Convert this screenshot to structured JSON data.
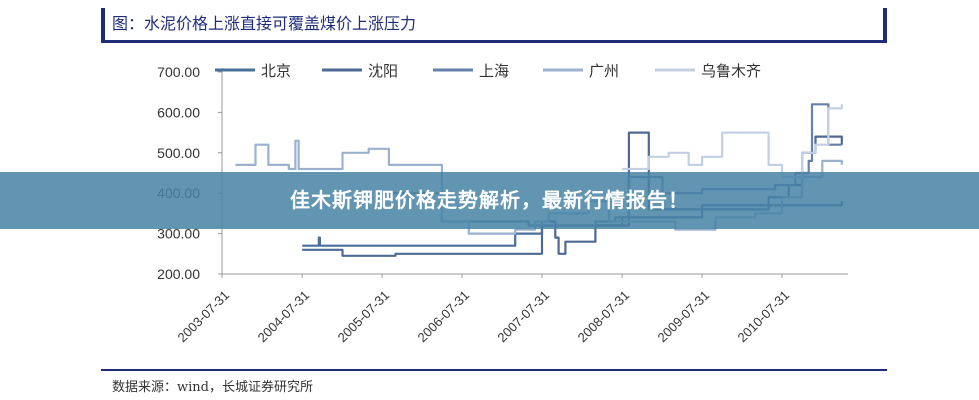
{
  "figure": {
    "title": "图：水泥价格上涨直接可覆盖煤价上涨压力",
    "source": "数据来源：wind，长城证券研究所"
  },
  "banner": {
    "text": "佳木斯钾肥价格走势解析，最新行情报告！"
  },
  "colors": {
    "title_bar": "#1f2d78",
    "banner_bg": "#4682a5"
  },
  "chart_data": {
    "type": "line",
    "title": "",
    "xlabel": "",
    "ylabel": "",
    "ylim": [
      200,
      700
    ],
    "y_ticks": [
      "700.00",
      "600.00",
      "500.00",
      "400.00",
      "300.00",
      "200.00"
    ],
    "x_ticks": [
      "2003-07-31",
      "2004-07-31",
      "2005-07-31",
      "2006-07-31",
      "2007-07-31",
      "2008-07-31",
      "2009-07-31",
      "2010-07-31"
    ],
    "legend_position": "top",
    "series": [
      {
        "name": "北京",
        "color": "#4a6f99",
        "points": [
          [
            "2004-07-31",
            270
          ],
          [
            "2004-09-30",
            270
          ],
          [
            "2004-10-15",
            290
          ],
          [
            "2004-10-20",
            270
          ],
          [
            "2005-06-30",
            270
          ],
          [
            "2006-07-31",
            270
          ],
          [
            "2007-03-31",
            300
          ],
          [
            "2007-07-31",
            320
          ],
          [
            "2008-06-30",
            320
          ],
          [
            "2008-07-31",
            340
          ],
          [
            "2009-07-31",
            370
          ],
          [
            "2010-07-31",
            370
          ],
          [
            "2010-12-31",
            370
          ],
          [
            "2011-04-30",
            380
          ]
        ]
      },
      {
        "name": "沈阳",
        "color": "#4e6a94",
        "points": [
          [
            "2004-07-31",
            260
          ],
          [
            "2004-09-30",
            260
          ],
          [
            "2005-01-31",
            245
          ],
          [
            "2005-06-30",
            245
          ],
          [
            "2005-09-30",
            250
          ],
          [
            "2007-02-28",
            250
          ],
          [
            "2007-07-31",
            330
          ],
          [
            "2007-09-30",
            290
          ],
          [
            "2007-10-15",
            250
          ],
          [
            "2007-11-15",
            280
          ],
          [
            "2008-03-31",
            320
          ],
          [
            "2008-07-31",
            320
          ],
          [
            "2008-08-31",
            550
          ],
          [
            "2008-10-31",
            550
          ],
          [
            "2008-11-30",
            360
          ],
          [
            "2010-05-31",
            390
          ],
          [
            "2010-08-31",
            420
          ],
          [
            "2010-10-31",
            500
          ],
          [
            "2010-12-31",
            540
          ],
          [
            "2011-04-30",
            520
          ]
        ]
      },
      {
        "name": "上海",
        "color": "#6682ac",
        "points": [
          [
            "2005-06-30",
            400
          ],
          [
            "2006-04-30",
            330
          ],
          [
            "2007-05-31",
            320
          ],
          [
            "2007-07-31",
            320
          ],
          [
            "2008-03-31",
            330
          ],
          [
            "2008-06-30",
            340
          ],
          [
            "2008-08-31",
            440
          ],
          [
            "2009-01-31",
            400
          ],
          [
            "2009-07-31",
            410
          ],
          [
            "2010-06-30",
            420
          ],
          [
            "2010-09-30",
            450
          ],
          [
            "2010-11-30",
            480
          ],
          [
            "2010-12-15",
            620
          ],
          [
            "2011-01-31",
            620
          ],
          [
            "2011-02-28",
            520
          ],
          [
            "2011-04-30",
            520
          ]
        ]
      },
      {
        "name": "广州",
        "color": "#9ab2d0",
        "points": [
          [
            "2003-09-30",
            470
          ],
          [
            "2003-12-31",
            520
          ],
          [
            "2004-02-28",
            470
          ],
          [
            "2004-05-31",
            460
          ],
          [
            "2004-06-30",
            530
          ],
          [
            "2004-07-15",
            460
          ],
          [
            "2005-01-31",
            500
          ],
          [
            "2005-05-31",
            510
          ],
          [
            "2005-08-31",
            470
          ],
          [
            "2006-04-30",
            330
          ],
          [
            "2006-08-31",
            300
          ],
          [
            "2007-03-31",
            310
          ],
          [
            "2007-06-30",
            330
          ],
          [
            "2007-08-31",
            350
          ],
          [
            "2008-02-29",
            380
          ],
          [
            "2008-05-31",
            330
          ],
          [
            "2008-10-31",
            330
          ],
          [
            "2009-03-31",
            310
          ],
          [
            "2009-09-30",
            340
          ],
          [
            "2010-03-31",
            350
          ],
          [
            "2010-07-31",
            390
          ],
          [
            "2010-10-31",
            440
          ],
          [
            "2011-01-31",
            480
          ],
          [
            "2011-04-30",
            470
          ]
        ]
      },
      {
        "name": "乌鲁木齐",
        "color": "#c3d0e3",
        "points": [
          [
            "2008-07-31",
            460
          ],
          [
            "2008-11-30",
            490
          ],
          [
            "2009-02-28",
            500
          ],
          [
            "2009-05-31",
            470
          ],
          [
            "2009-07-31",
            490
          ],
          [
            "2009-10-31",
            550
          ],
          [
            "2010-04-30",
            550
          ],
          [
            "2010-05-31",
            470
          ],
          [
            "2010-07-31",
            440
          ],
          [
            "2010-10-31",
            500
          ],
          [
            "2010-12-31",
            520
          ],
          [
            "2011-02-28",
            610
          ],
          [
            "2011-04-30",
            620
          ]
        ]
      }
    ]
  }
}
